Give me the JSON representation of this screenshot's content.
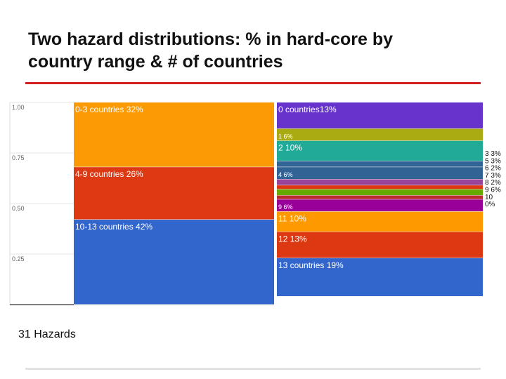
{
  "title": "Two hazard distributions: % in hard-core by\ncountry range & # of countries",
  "footer": "31 Hazards",
  "colors": {
    "title_rule": "#d41f1f",
    "bottom_rule": "#e2e2e2"
  },
  "chart_data": {
    "type": "bar",
    "stacked": true,
    "orientation": "vertical",
    "ylim": [
      0,
      1
    ],
    "y_ticks": [
      "1.00",
      "0.75",
      "0.50",
      "0.25"
    ],
    "grid": true,
    "legend": "right",
    "bars": [
      {
        "segments_top_to_bottom": [
          {
            "label": "0-3 countries 32%",
            "value": 0.32,
            "color": "#fb9a05"
          },
          {
            "label": "4-9 countries 26%",
            "value": 0.26,
            "color": "#dd3a14"
          },
          {
            "label": "10-13 countries 42%",
            "value": 0.42,
            "color": "#3366cc"
          }
        ]
      },
      {
        "segments_top_to_bottom": [
          {
            "label": "0 countries13%",
            "value": 0.13,
            "color": "#6633cc"
          },
          {
            "label": "1 6%",
            "value": 0.06,
            "color": "#aaaa11"
          },
          {
            "label": "2 10%",
            "value": 0.1,
            "color": "#22aa99"
          },
          {
            "label": "",
            "value": 0.03,
            "color": "#316395"
          },
          {
            "label": "4 6%",
            "value": 0.06,
            "color": "#316395"
          },
          {
            "label": "",
            "value": 0.03,
            "color": "#994499"
          },
          {
            "label": "",
            "value": 0.02,
            "color": "#dc3912"
          },
          {
            "label": "",
            "value": 0.03,
            "color": "#66aa00"
          },
          {
            "label": "",
            "value": 0.02,
            "color": "#b82e2e"
          },
          {
            "label": "9 6%",
            "value": 0.06,
            "color": "#990099"
          },
          {
            "label": "11 10%",
            "value": 0.1,
            "color": "#ff9900"
          },
          {
            "label": "12 13%",
            "value": 0.13,
            "color": "#dc3912"
          },
          {
            "label": "13 countries 19%",
            "value": 0.19,
            "color": "#3366cc"
          }
        ]
      }
    ],
    "side_labels": [
      "3 3%",
      "5 3%",
      "6 2%",
      "7 3%",
      "8 2%",
      "9 6%",
      "10",
      "0%"
    ]
  }
}
